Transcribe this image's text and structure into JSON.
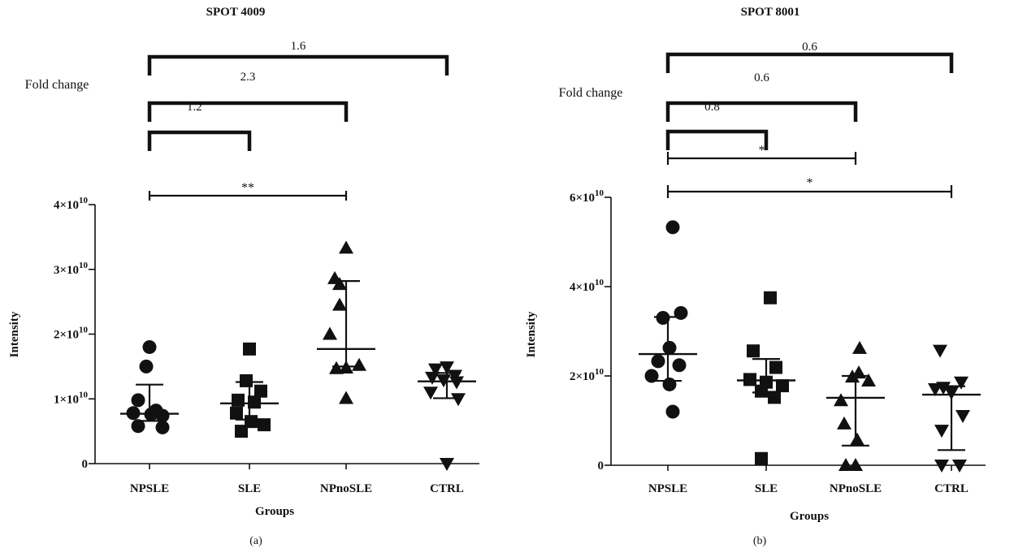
{
  "colors": {
    "ink": "#111111",
    "background": "#ffffff"
  },
  "chart_data": [
    {
      "type": "scatter",
      "title": "SPOT 4009",
      "panel_label": "(a)",
      "xlabel": "Groups",
      "ylabel": "Intensity",
      "categories": [
        "NPSLE",
        "SLE",
        "NPnoSLE",
        "CTRL"
      ],
      "ylim": [
        0,
        40000000000
      ],
      "yticks": [
        {
          "value": 0,
          "base": "0",
          "exp": ""
        },
        {
          "value": 10000000000,
          "base": "1×10",
          "exp": "10"
        },
        {
          "value": 20000000000,
          "base": "2×10",
          "exp": "10"
        },
        {
          "value": 30000000000,
          "base": "3×10",
          "exp": "10"
        },
        {
          "value": 40000000000,
          "base": "4×10",
          "exp": "10"
        }
      ],
      "series": [
        {
          "category": "NPSLE",
          "marker": "circle",
          "values": [
            18000000000,
            15000000000,
            9800000000,
            8200000000,
            7800000000,
            7600000000,
            7400000000,
            5800000000,
            5600000000
          ],
          "median": 7700000000,
          "iqr": [
            6600000000,
            12200000000
          ]
        },
        {
          "category": "SLE",
          "marker": "square",
          "values": [
            17700000000,
            12800000000,
            11200000000,
            9800000000,
            9500000000,
            7800000000,
            6500000000,
            6000000000,
            5000000000
          ],
          "median": 9300000000,
          "iqr": [
            6800000000,
            12600000000
          ]
        },
        {
          "category": "NPnoSLE",
          "marker": "triangle-up",
          "values": [
            33300000000,
            28600000000,
            27700000000,
            24500000000,
            20000000000,
            15200000000,
            14700000000,
            14800000000,
            10100000000
          ],
          "median": 17700000000,
          "iqr": [
            15000000000,
            28200000000
          ]
        },
        {
          "category": "CTRL",
          "marker": "triangle-down",
          "values": [
            14900000000,
            14600000000,
            13600000000,
            13300000000,
            12900000000,
            12600000000,
            11000000000,
            10000000000,
            0
          ],
          "median": 12700000000,
          "iqr": [
            10100000000,
            14000000000
          ]
        }
      ],
      "fold_change_label": "Fold change",
      "fold_changes": [
        {
          "from": "NPSLE",
          "to": "SLE",
          "label": "1.2"
        },
        {
          "from": "NPSLE",
          "to": "NPnoSLE",
          "label": "2.3"
        },
        {
          "from": "NPSLE",
          "to": "CTRL",
          "label": "1.6"
        }
      ],
      "significance": [
        {
          "from": "NPSLE",
          "to": "NPnoSLE",
          "label": "**"
        }
      ]
    },
    {
      "type": "scatter",
      "title": "SPOT 8001",
      "panel_label": "(b)",
      "xlabel": "Groups",
      "ylabel": "Intensity",
      "categories": [
        "NPSLE",
        "SLE",
        "NPnoSLE",
        "CTRL"
      ],
      "ylim": [
        0,
        60000000000
      ],
      "yticks": [
        {
          "value": 0,
          "base": "0",
          "exp": ""
        },
        {
          "value": 20000000000,
          "base": "2×10",
          "exp": "10"
        },
        {
          "value": 40000000000,
          "base": "4×10",
          "exp": "10"
        },
        {
          "value": 60000000000,
          "base": "6×10",
          "exp": "10"
        }
      ],
      "series": [
        {
          "category": "NPSLE",
          "marker": "circle",
          "values": [
            53300000000,
            34100000000,
            33000000000,
            26300000000,
            23300000000,
            22400000000,
            20000000000,
            18100000000,
            12000000000
          ],
          "median": 24900000000,
          "iqr": [
            18900000000,
            33200000000
          ]
        },
        {
          "category": "SLE",
          "marker": "square",
          "values": [
            37500000000,
            25600000000,
            21900000000,
            19200000000,
            18600000000,
            17800000000,
            16600000000,
            15200000000,
            1500000000
          ],
          "median": 19000000000,
          "iqr": [
            16300000000,
            23800000000
          ]
        },
        {
          "category": "NPnoSLE",
          "marker": "triangle-up",
          "values": [
            26200000000,
            20700000000,
            19800000000,
            18900000000,
            14500000000,
            9300000000,
            5700000000,
            0,
            0
          ],
          "median": 15100000000,
          "iqr": [
            4400000000,
            20000000000
          ]
        },
        {
          "category": "CTRL",
          "marker": "triangle-down",
          "values": [
            25700000000,
            18600000000,
            17400000000,
            17100000000,
            16300000000,
            11100000000,
            7800000000,
            0,
            0
          ],
          "median": 15800000000,
          "iqr": [
            3400000000,
            17700000000
          ]
        }
      ],
      "fold_change_label": "Fold change",
      "fold_changes": [
        {
          "from": "NPSLE",
          "to": "SLE",
          "label": "0.8"
        },
        {
          "from": "NPSLE",
          "to": "NPnoSLE",
          "label": "0.6"
        },
        {
          "from": "NPSLE",
          "to": "CTRL",
          "label": "0.6"
        }
      ],
      "significance": [
        {
          "from": "NPSLE",
          "to": "NPnoSLE",
          "label": "*"
        },
        {
          "from": "NPSLE",
          "to": "CTRL",
          "label": "*"
        }
      ]
    }
  ]
}
